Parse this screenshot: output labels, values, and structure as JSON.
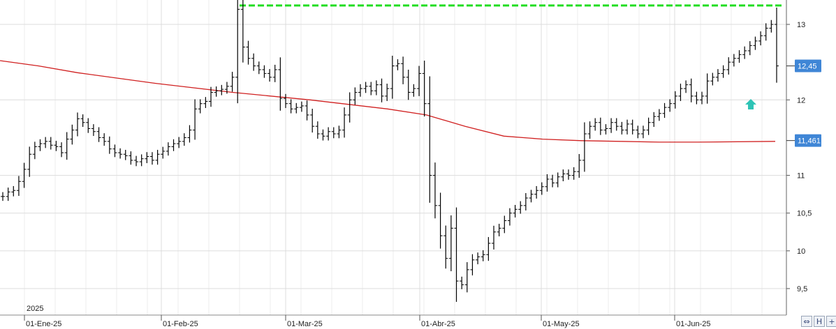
{
  "chart_data": {
    "type": "ohlc",
    "year_label": "2025",
    "x_tick_labels": [
      "01-Ene-25",
      "01-Feb-25",
      "01-Mar-25",
      "01-Abr-25",
      "01-May-25",
      "01-Jun-25"
    ],
    "y_tick_labels": [
      "13",
      "12",
      "11",
      "10,5",
      "10",
      "9,5"
    ],
    "y_ticks": [
      13,
      12,
      11,
      10.5,
      10,
      9.5
    ],
    "ylim": [
      9.25,
      13.3
    ],
    "grid": true,
    "last_price_label": "12,45",
    "last_price": 12.45,
    "ma_last_label": "11,461",
    "ma_last": 11.461,
    "resistance_level": 13.25,
    "colors": {
      "ma_line": "#d02020",
      "resistance": "#22dd22",
      "price_badge": "#3f86d6",
      "ma_badge": "#3f86d6",
      "bars": "#000000",
      "arrow": "#2ec4b6",
      "grid": "#dcdcdc"
    },
    "closes": [
      10.72,
      10.78,
      10.8,
      10.92,
      11.08,
      11.28,
      11.38,
      11.42,
      11.45,
      11.4,
      11.38,
      11.3,
      11.48,
      11.6,
      11.75,
      11.7,
      11.62,
      11.58,
      11.5,
      11.45,
      11.35,
      11.3,
      11.28,
      11.26,
      11.2,
      11.18,
      11.22,
      11.25,
      11.2,
      11.28,
      11.32,
      11.38,
      11.42,
      11.45,
      11.5,
      11.6,
      11.88,
      11.95,
      11.98,
      12.1,
      12.12,
      12.14,
      12.18,
      12.3,
      13.2,
      12.7,
      12.55,
      12.45,
      12.4,
      12.35,
      12.3,
      12.4,
      12.02,
      11.95,
      11.88,
      11.9,
      11.92,
      11.8,
      11.65,
      11.55,
      11.52,
      11.58,
      11.55,
      11.6,
      11.8,
      12.0,
      12.1,
      12.15,
      12.18,
      12.12,
      12.2,
      12.05,
      12.15,
      12.45,
      12.48,
      12.3,
      12.1,
      12.15,
      12.35,
      11.95,
      11.0,
      10.6,
      10.2,
      9.9,
      10.3,
      9.6,
      9.55,
      9.75,
      9.88,
      9.92,
      9.95,
      10.1,
      10.25,
      10.3,
      10.4,
      10.5,
      10.55,
      10.6,
      10.7,
      10.75,
      10.8,
      10.85,
      10.95,
      10.9,
      10.98,
      11.02,
      11.0,
      11.05,
      11.2,
      11.55,
      11.65,
      11.7,
      11.6,
      11.62,
      11.7,
      11.65,
      11.6,
      11.68,
      11.6,
      11.55,
      11.6,
      11.7,
      11.78,
      11.82,
      11.9,
      11.95,
      12.05,
      12.15,
      12.2,
      12.05,
      12.0,
      12.05,
      12.25,
      12.3,
      12.35,
      12.4,
      12.5,
      12.55,
      12.6,
      12.65,
      12.72,
      12.78,
      12.85,
      12.95,
      13.0,
      12.45
    ],
    "ma_x_fractions": [
      0.0,
      0.05,
      0.1,
      0.2,
      0.3,
      0.4,
      0.45,
      0.5,
      0.55,
      0.6,
      0.65,
      0.7,
      0.75,
      0.8,
      0.85,
      0.9,
      1.0
    ],
    "ma_values": [
      12.52,
      12.45,
      12.36,
      12.22,
      12.1,
      12.0,
      11.94,
      11.88,
      11.8,
      11.65,
      11.52,
      11.48,
      11.46,
      11.45,
      11.44,
      11.44,
      11.45
    ]
  },
  "ui": {
    "controls": [
      "⇔",
      "H",
      "+"
    ]
  }
}
